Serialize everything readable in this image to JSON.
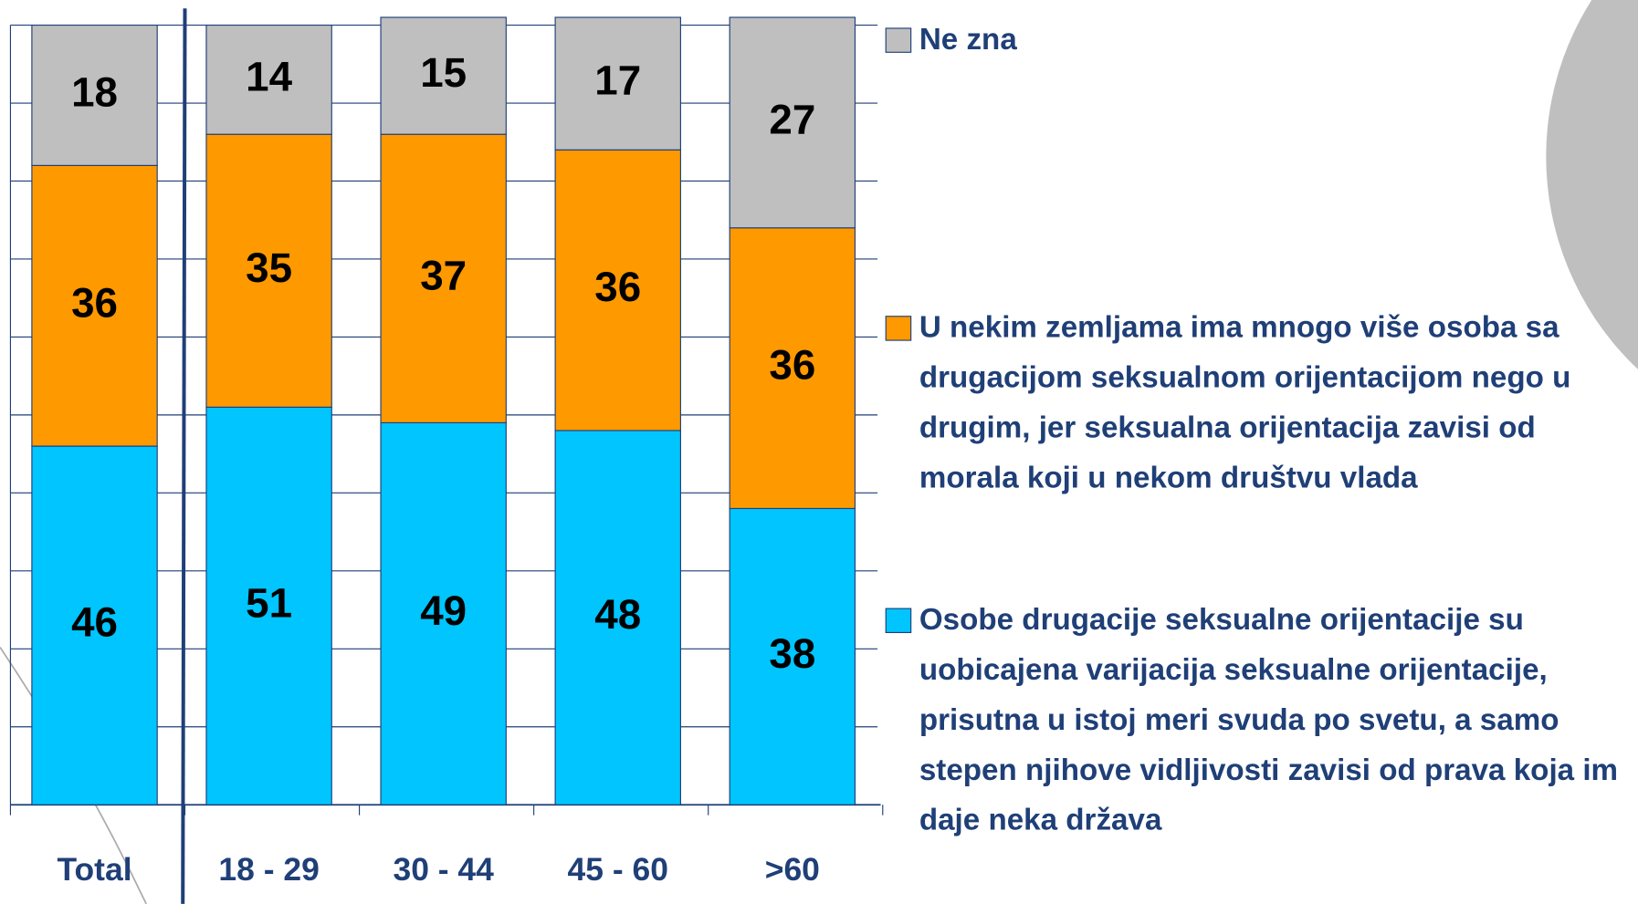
{
  "chart_data": {
    "type": "stacked_bar",
    "categories": [
      "Total",
      "18 - 29",
      "30 - 44",
      "45 - 60",
      ">60"
    ],
    "series": [
      {
        "name": "Osobe drugacije seksualne orijentacije su uobicajena varijacija seksualne orijentacije, prisutna u istoj meri svuda po svetu, a samo stepen njihove vidljivosti zavisi od prava koja im daje neka država",
        "color": "#00c5ff",
        "values": [
          46,
          51,
          49,
          48,
          38
        ]
      },
      {
        "name": "U nekim zemljama ima mnogo više osoba sa drugacijom seksualnom orijentacijom nego u drugim, jer seksualna orijentacija zavisi od morala koji u nekom društvu vlada",
        "color": "#ff9900",
        "values": [
          36,
          35,
          37,
          36,
          36
        ]
      },
      {
        "name": "Ne zna",
        "color": "#bfbfbf",
        "values": [
          18,
          14,
          15,
          17,
          27
        ]
      }
    ],
    "ylim": [
      0,
      100
    ],
    "yticks": [
      0,
      10,
      20,
      30,
      40,
      50,
      60,
      70,
      80,
      90,
      100
    ],
    "grid": true,
    "legend": "right"
  }
}
